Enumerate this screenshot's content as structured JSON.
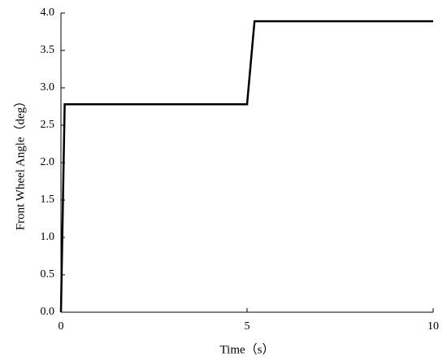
{
  "chart_data": {
    "type": "line",
    "x_label": "Time（s）",
    "y_label": "Front Wheel Angle（deg）",
    "x": [
      0,
      0.1,
      5.0,
      5.2,
      10
    ],
    "series": [
      {
        "name": "Front Wheel Angle",
        "color": "#000000",
        "values": [
          0,
          2.78,
          2.78,
          3.89,
          3.89
        ]
      }
    ],
    "xlim": [
      0,
      10
    ],
    "xticks": [
      0,
      5,
      10
    ],
    "ylim": [
      0,
      4
    ],
    "yticks": [
      {
        "value": 0,
        "label": "0.0"
      },
      0.5,
      {
        "value": 1,
        "label": "1.0"
      },
      1.5,
      {
        "value": 2,
        "label": "2.0"
      },
      2.5,
      {
        "value": 3,
        "label": "3.0"
      },
      3.5,
      {
        "value": 4,
        "label": "4.0"
      }
    ],
    "grid": false
  }
}
